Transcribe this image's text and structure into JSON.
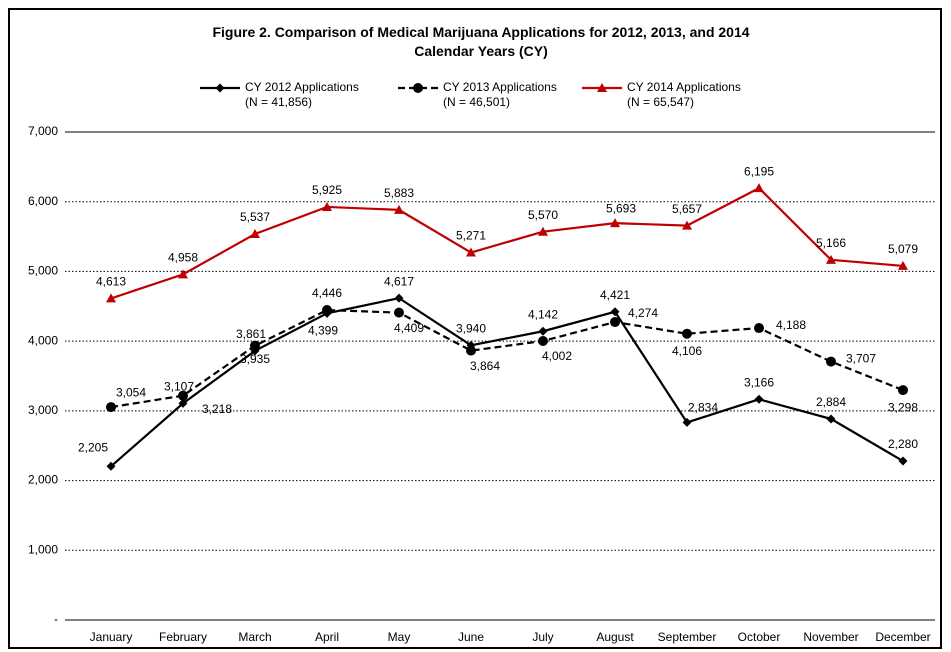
{
  "chart_data": {
    "type": "line",
    "title": "Figure 2. Comparison of Medical Marijuana Applications for 2012, 2013, and 2014 Calendar Years (CY)",
    "categories": [
      "January",
      "February",
      "March",
      "April",
      "May",
      "June",
      "July",
      "August",
      "September",
      "October",
      "November",
      "December"
    ],
    "series": [
      {
        "name": "CY 2012 Applications",
        "note": "(N = 41,856)",
        "color": "#000000",
        "dash": "solid",
        "marker": "diamond",
        "values": [
          2205,
          3107,
          3861,
          4399,
          4617,
          3940,
          4142,
          4421,
          2834,
          3166,
          2884,
          2280
        ],
        "value_labels": [
          "2,205",
          "3,107",
          "3,861",
          "4,399",
          "4,617",
          "3,940",
          "4,142",
          "4,421",
          "2,834",
          "3,166",
          "2,884",
          "2,280"
        ]
      },
      {
        "name": "CY 2013 Applications",
        "note": "(N = 46,501)",
        "color": "#000000",
        "dash": "dashed",
        "marker": "circle",
        "values": [
          3054,
          3218,
          3935,
          4446,
          4409,
          3864,
          4002,
          4274,
          4106,
          4188,
          3707,
          3298
        ],
        "value_labels": [
          "3,054",
          "3,218",
          "3,935",
          "4,446",
          "4,409",
          "3,864",
          "4,002",
          "4,274",
          "4,106",
          "4,188",
          "3,707",
          "3,298"
        ]
      },
      {
        "name": "CY 2014 Applications",
        "note": "(N = 65,547)",
        "color": "#c00000",
        "dash": "solid",
        "marker": "triangle",
        "values": [
          4613,
          4958,
          5537,
          5925,
          5883,
          5271,
          5570,
          5693,
          5657,
          6195,
          5166,
          5079
        ],
        "value_labels": [
          "4,613",
          "4,958",
          "5,537",
          "5,925",
          "5,883",
          "5,271",
          "5,570",
          "5,693",
          "5,657",
          "6,195",
          "5,166",
          "5,079"
        ]
      }
    ],
    "ylim": [
      0,
      7000
    ],
    "yticks": [
      {
        "value": 0,
        "label": "-"
      },
      {
        "value": 1000,
        "label": "1,000"
      },
      {
        "value": 2000,
        "label": "2,000"
      },
      {
        "value": 3000,
        "label": "3,000"
      },
      {
        "value": 4000,
        "label": "4,000"
      },
      {
        "value": 5000,
        "label": "5,000"
      },
      {
        "value": 6000,
        "label": "6,000"
      },
      {
        "value": 7000,
        "label": "7,000"
      }
    ],
    "grid": true
  }
}
